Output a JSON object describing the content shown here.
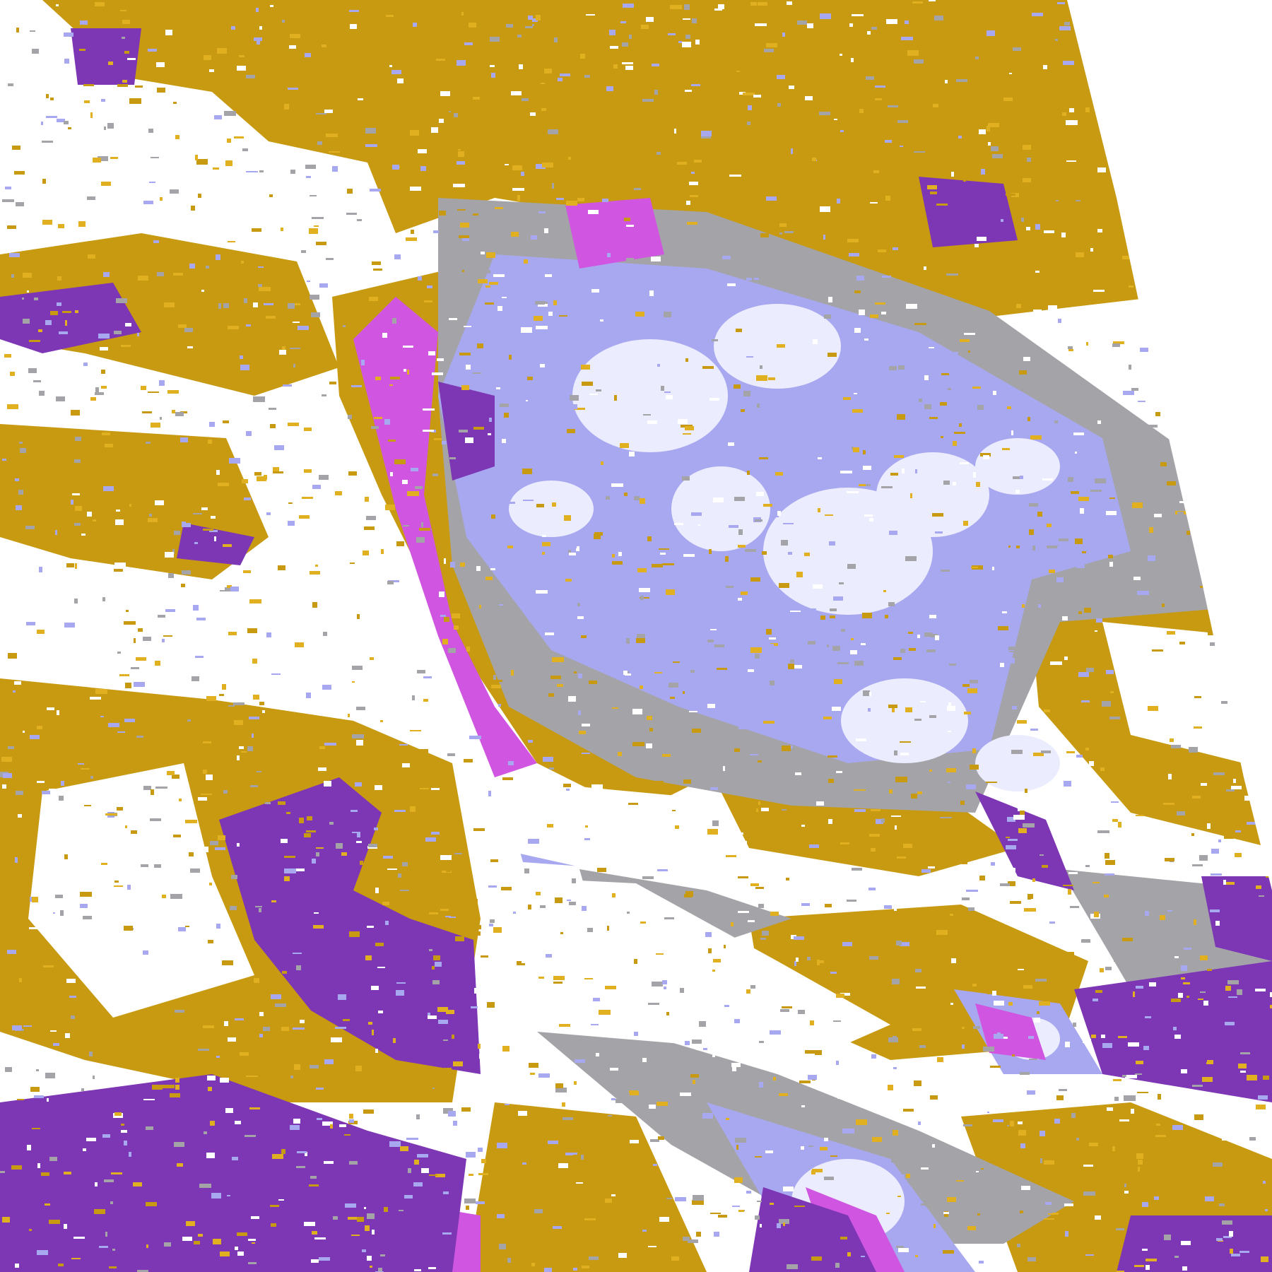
{
  "map": {
    "kind": "classified satellite cloud imagery",
    "palette": {
      "background": "#ffffff",
      "gold": "#c89a12",
      "gold_light": "#e0b020",
      "purple": "#7d36b4",
      "magenta": "#d055e0",
      "lavender": "#a8a8f0",
      "pale": "#ececff",
      "gray": "#a4a4a8",
      "swath_edge": "#ffffff"
    }
  }
}
